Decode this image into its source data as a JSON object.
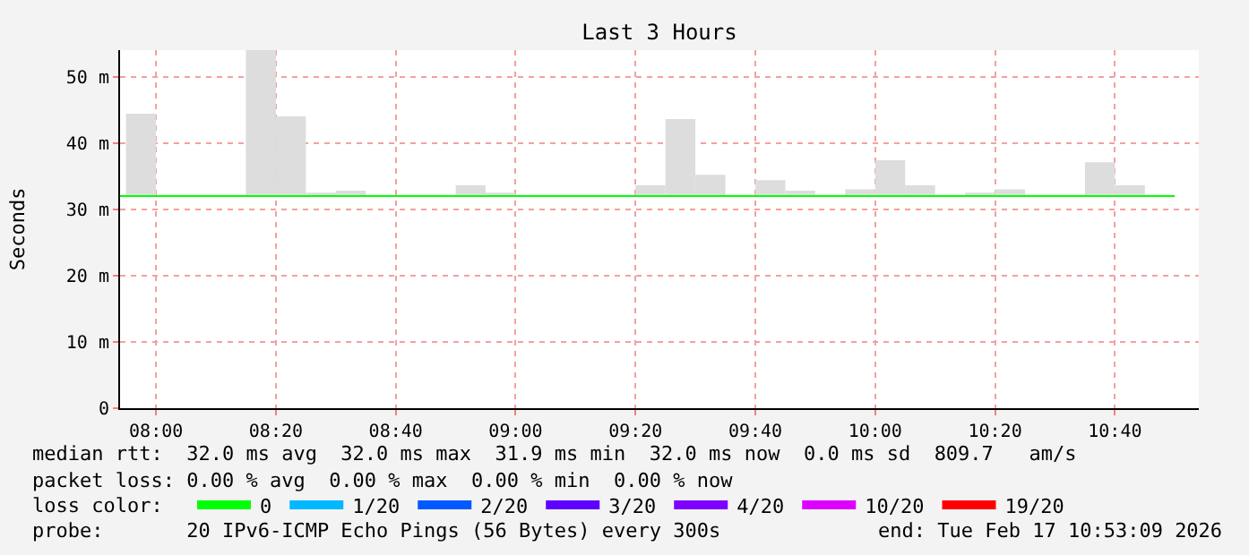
{
  "chart_data": {
    "type": "bar",
    "title": "Last 3 Hours",
    "ylabel": "Seconds",
    "x": [
      null,
      "2026-02-17T07:57:30",
      "2026-02-17T08:17:30",
      "2026-02-17T08:22:30",
      "2026-02-17T08:27:30",
      "2026-02-17T08:32:30",
      "2026-02-17T08:52:30",
      "2026-02-17T08:57:30",
      "2026-02-17T09:22:30",
      "2026-02-17T09:27:30",
      "2026-02-17T09:32:30",
      "2026-02-17T09:42:30",
      "2026-02-17T09:47:30",
      "2026-02-17T09:57:30",
      "2026-02-17T10:02:30",
      "2026-02-17T10:07:30",
      "2026-02-17T10:17:30",
      "2026-02-17T10:22:30",
      "2026-02-17T10:37:30",
      "2026-02-17T10:42:30"
    ],
    "series": [
      {
        "color": "#dddddd",
        "base": [
          null,
          32,
          32,
          32,
          32,
          32,
          32,
          32,
          32,
          32,
          32,
          32,
          32,
          32,
          32,
          32,
          32,
          32,
          32,
          32
        ],
        "values": [
          null,
          12.4,
          22,
          12,
          0.5,
          0.8,
          1.6,
          0.5,
          1.6,
          11.6,
          3.2,
          2.4,
          0.8,
          1,
          5.4,
          1.6,
          0.5,
          1,
          5.1,
          1.6
        ]
      },
      {
        "type": "line",
        "name": "0",
        "color": "#00ff00",
        "x": [
          "2026-02-17T07:54",
          "2026-02-17T10:50"
        ],
        "values": [
          32,
          32
        ]
      },
      {
        "type": "line",
        "name": "1/20",
        "color": "#00b8ff",
        "values": [
          null,
          null,
          null,
          null,
          null,
          null,
          null,
          null,
          null,
          null,
          null,
          null,
          null,
          null,
          null,
          null,
          null,
          null,
          null,
          null
        ]
      },
      {
        "type": "line",
        "name": "2/20",
        "color": "#0059ff",
        "values": [
          null,
          null,
          null,
          null,
          null,
          null,
          null,
          null,
          null,
          null,
          null,
          null,
          null,
          null,
          null,
          null,
          null,
          null,
          null,
          null
        ]
      },
      {
        "type": "line",
        "name": "3/20",
        "color": "#5e00ff",
        "values": [
          null,
          null,
          null,
          null,
          null,
          null,
          null,
          null,
          null,
          null,
          null,
          null,
          null,
          null,
          null,
          null,
          null,
          null,
          null,
          null
        ]
      },
      {
        "type": "line",
        "name": "4/20",
        "color": "#7e00ff",
        "values": [
          null,
          null,
          null,
          null,
          null,
          null,
          null,
          null,
          null,
          null,
          null,
          null,
          null,
          null,
          null,
          null,
          null,
          null,
          null,
          null
        ]
      },
      {
        "type": "line",
        "name": "10/20",
        "color": "#dd00ff",
        "values": [
          null,
          null,
          null,
          null,
          null,
          null,
          null,
          null,
          null,
          null,
          null,
          null,
          null,
          null,
          null,
          null,
          null,
          null,
          null,
          null
        ]
      },
      {
        "type": "line",
        "name": "19/20",
        "color": "#ff0000",
        "values": [
          null,
          null,
          null,
          null,
          null,
          null,
          null,
          null,
          null,
          null,
          null,
          null,
          null,
          null,
          null,
          null,
          null,
          null,
          null,
          null
        ]
      }
    ],
    "xlim": [
      "2026-02-17T07:54",
      "2026-02-17T10:54"
    ],
    "xticks": [
      {
        "value": "2026-02-17T08:00",
        "label": "08:00"
      },
      {
        "value": "2026-02-17T08:20",
        "label": "08:20"
      },
      {
        "value": "2026-02-17T08:40",
        "label": "08:40"
      },
      {
        "value": "2026-02-17T09:00",
        "label": "09:00"
      },
      {
        "value": "2026-02-17T09:20",
        "label": "09:20"
      },
      {
        "value": "2026-02-17T09:40",
        "label": "09:40"
      },
      {
        "value": "2026-02-17T10:00",
        "label": "10:00"
      },
      {
        "value": "2026-02-17T10:20",
        "label": "10:20"
      },
      {
        "value": "2026-02-17T10:40",
        "label": "10:40"
      }
    ],
    "ylim": [
      0,
      54
    ],
    "yticks": [
      0,
      {
        "value": 10,
        "label": "10 m"
      },
      {
        "value": 20,
        "label": "20 m"
      },
      {
        "value": 30,
        "label": "30 m"
      },
      {
        "value": 40,
        "label": "40 m"
      },
      {
        "value": 50,
        "label": "50 m"
      }
    ],
    "grid": true,
    "legend": "bottom",
    "annotations": [
      "median rtt:  32.0 ms avg  32.0 ms max  31.9 ms min  32.0 ms now  0.0 ms sd  809.7   am/s",
      "packet loss: 0.00 % avg  0.00 % max  0.00 % min  0.00 % now",
      "loss color:",
      "probe:       20 IPv6-ICMP Echo Pings (56 Bytes) every 300s",
      "end: Tue Feb 17 10:53:09 2026"
    ]
  }
}
